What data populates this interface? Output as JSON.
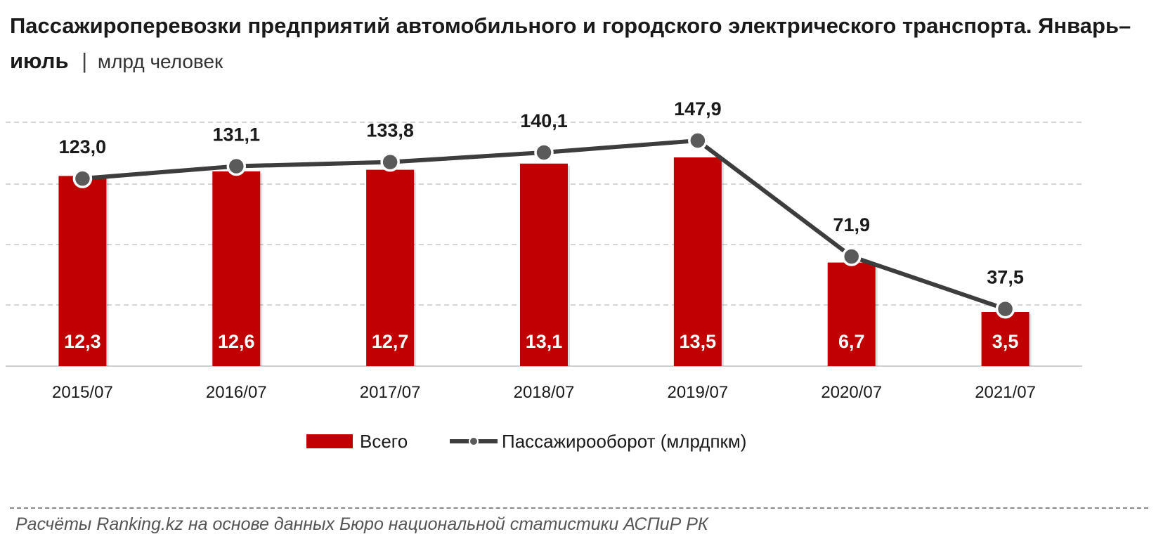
{
  "title": {
    "main": "Пассажироперевозки предприятий автомобильного и городского электрического транспорта. Январь–июль",
    "separator": "|",
    "unit": "млрд человек"
  },
  "source": "Расчёты Ranking.kz на основе данных Бюро национальной статистики АСПиР РК",
  "colors": {
    "bar": "#c00000",
    "line": "#3d3d3d",
    "marker_fill": "#5a5a5a",
    "marker_stroke": "#ffffff",
    "grid": "#c8c8c8"
  },
  "chart_data": {
    "type": "bar",
    "categories": [
      "2015/07",
      "2016/07",
      "2017/07",
      "2018/07",
      "2019/07",
      "2020/07",
      "2021/07"
    ],
    "series": [
      {
        "name": "Всего",
        "type": "bar",
        "values": [
          12.3,
          12.6,
          12.7,
          13.1,
          13.5,
          6.7,
          3.5
        ],
        "labels": [
          "12,3",
          "12,6",
          "12,7",
          "13,1",
          "13,5",
          "6,7",
          "3,5"
        ]
      },
      {
        "name": "Пассажирооборот (млрдпкм)",
        "type": "line",
        "values": [
          123.0,
          131.1,
          133.8,
          140.1,
          147.9,
          71.9,
          37.5
        ],
        "labels": [
          "123,0",
          "131,1",
          "133,8",
          "140,1",
          "147,9",
          "71,9",
          "37,5"
        ]
      }
    ],
    "grid": true,
    "legend_position": "bottom"
  }
}
